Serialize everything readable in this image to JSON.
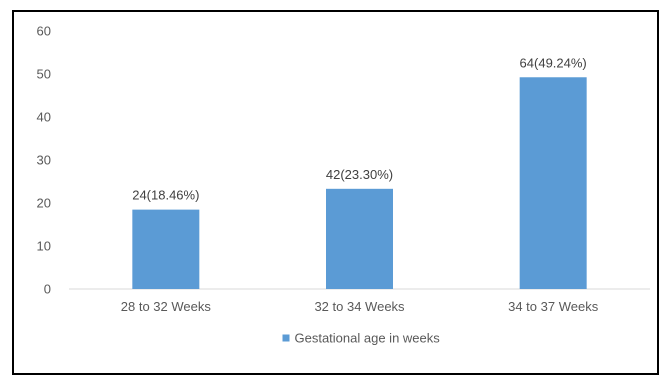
{
  "chart_data": {
    "type": "bar",
    "categories": [
      "28 to 32 Weeks",
      "32 to 34 Weeks",
      "34 to 37 Weeks"
    ],
    "series": [
      {
        "name": "Gestational age in weeks",
        "values": [
          18.46,
          23.3,
          49.24
        ],
        "color": "#5b9bd5"
      }
    ],
    "data_labels": [
      "24(18.46%)",
      "42(23.30%)",
      "64(49.24%)"
    ],
    "ylim": [
      0,
      60
    ],
    "yticks": [
      0,
      10,
      20,
      30,
      40,
      50,
      60
    ],
    "grid": false,
    "legend": "bottom"
  }
}
